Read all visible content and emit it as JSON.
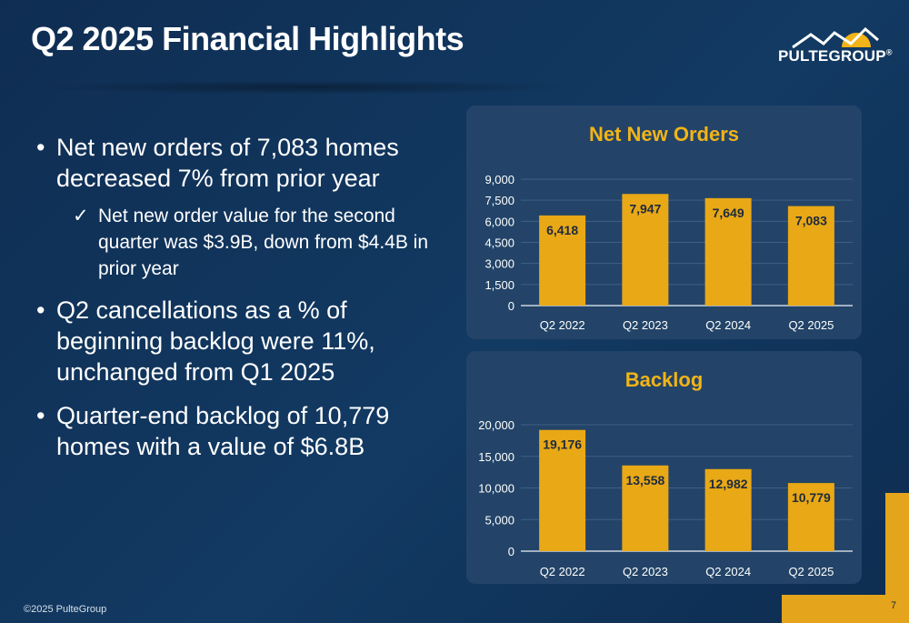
{
  "header": {
    "title": "Q2 2025 Financial Highlights"
  },
  "logo": {
    "text": "PULTEGROUP",
    "mark": "®",
    "icon": "roofline-logo-icon"
  },
  "bullets": [
    {
      "text": "Net new orders of 7,083 homes decreased 7% from prior year"
    },
    {
      "text": "Net new order value for the second quarter was $3.9B, down from $4.4B in prior year",
      "sub": true
    },
    {
      "text": "Q2 cancellations as a % of beginning backlog were 11%, unchanged from Q1 2025"
    },
    {
      "text": "Quarter-end backlog of 10,779 homes with a value of $6.8B"
    }
  ],
  "bullet_glyph": "•",
  "check_glyph": "✓",
  "colors": {
    "bar": "#e9a816",
    "title_accent": "#f2b418",
    "panel": "#234468",
    "accent_block": "#e4a41c"
  },
  "chart_data": [
    {
      "type": "bar",
      "title": "Net New Orders",
      "categories": [
        "Q2 2022",
        "Q2 2023",
        "Q2 2024",
        "Q2 2025"
      ],
      "values": [
        6418,
        7947,
        7649,
        7083
      ],
      "value_labels": [
        "6,418",
        "7,947",
        "7,649",
        "7,083"
      ],
      "ylim": [
        0,
        9000
      ],
      "yticks": [
        0,
        1500,
        3000,
        4500,
        6000,
        7500,
        9000
      ],
      "ytick_labels": [
        "0",
        "1,500",
        "3,000",
        "4,500",
        "6,000",
        "7,500",
        "9,000"
      ],
      "grid": true
    },
    {
      "type": "bar",
      "title": "Backlog",
      "categories": [
        "Q2 2022",
        "Q2 2023",
        "Q2 2024",
        "Q2 2025"
      ],
      "values": [
        19176,
        13558,
        12982,
        10779
      ],
      "value_labels": [
        "19,176",
        "13,558",
        "12,982",
        "10,779"
      ],
      "ylim": [
        0,
        20000
      ],
      "yticks": [
        0,
        5000,
        10000,
        15000,
        20000
      ],
      "ytick_labels": [
        "0",
        "5,000",
        "10,000",
        "15,000",
        "20,000"
      ],
      "grid": true
    }
  ],
  "footer": {
    "copyright": "©2025 PulteGroup",
    "page": "7"
  }
}
